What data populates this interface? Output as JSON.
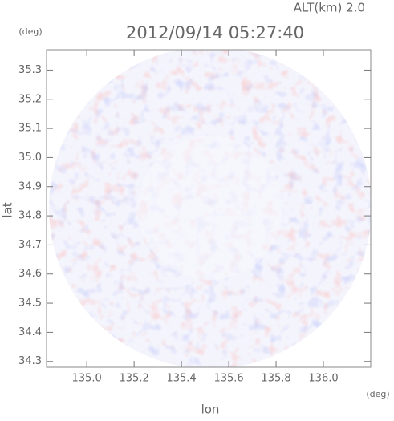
{
  "chart_data": {
    "type": "radar-map",
    "title": "2012/09/14 05:27:40",
    "subtitle": "ALT(km) 2.0",
    "x_label": "lon",
    "y_label": "lat",
    "x_unit": "(deg)",
    "y_unit": "(deg)",
    "xlim": [
      134.83,
      136.2
    ],
    "ylim": [
      34.28,
      35.37
    ],
    "xticks": [
      {
        "value": 135.0,
        "label": "135.0"
      },
      135.2,
      135.4,
      135.6,
      135.8,
      {
        "value": 136.0,
        "label": "136.0"
      }
    ],
    "yticks": [
      {
        "value": 34.3,
        "label": "34.3"
      },
      34.4,
      34.5,
      34.6,
      34.7,
      34.8,
      34.9,
      {
        "value": 35.0,
        "label": "35.0"
      },
      35.1,
      35.2,
      35.3
    ]
  }
}
